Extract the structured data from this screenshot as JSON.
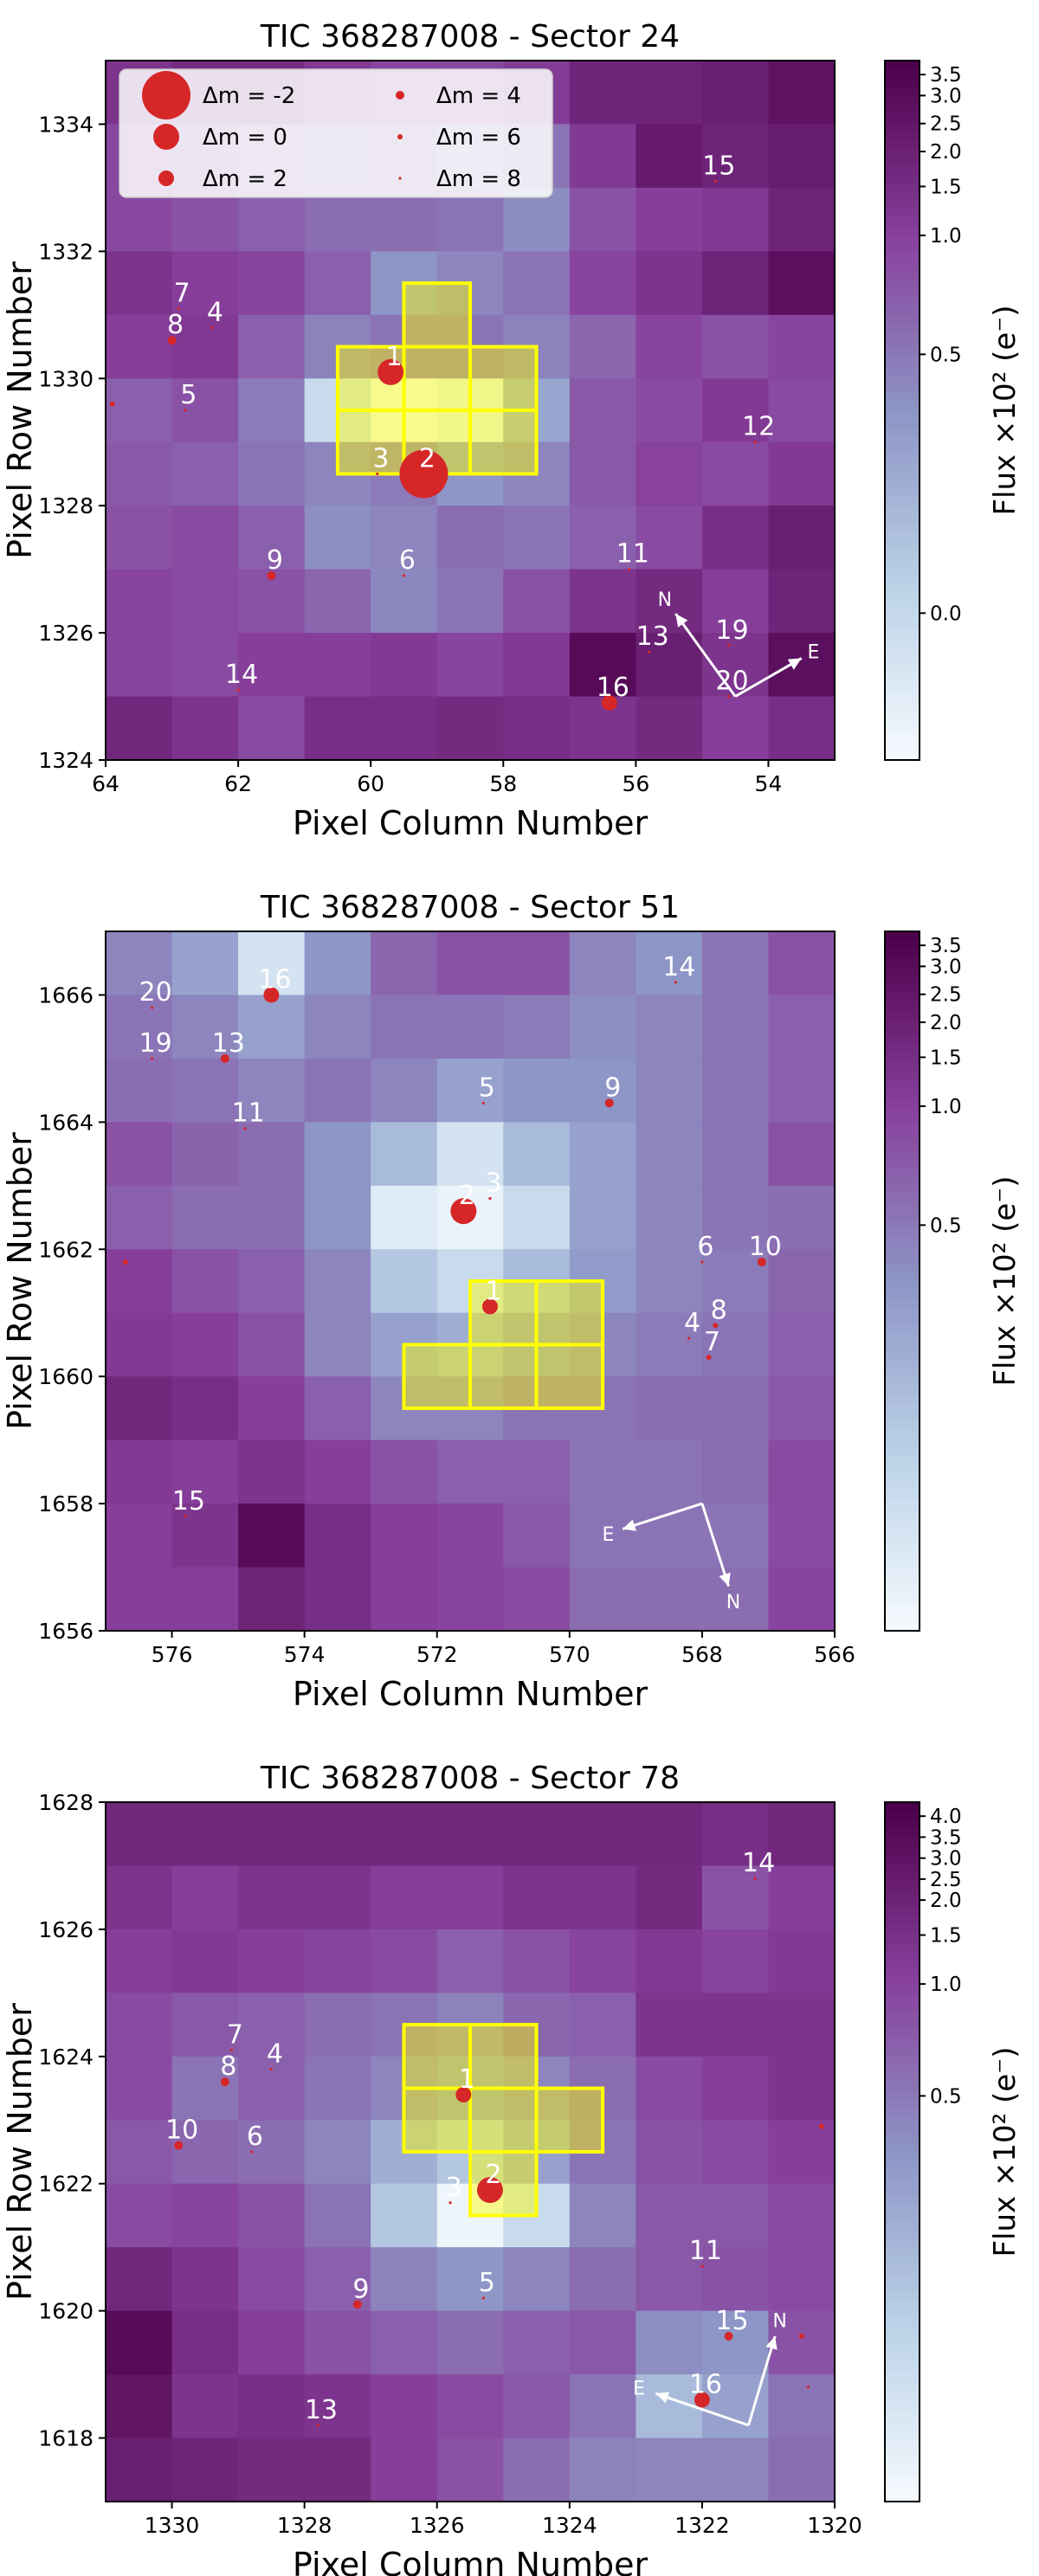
{
  "chart_data": [
    {
      "type": "heatmap",
      "title": "TIC 368287008 - Sector 24",
      "xlabel": "Pixel Column Number",
      "ylabel": "Pixel Row Number",
      "colorbar_label": "Flux ×10² (e⁻)",
      "xlim": [
        64,
        53
      ],
      "ylim": [
        1324,
        1335
      ],
      "xticks": [
        64,
        62,
        60,
        58,
        56,
        54
      ],
      "yticks": [
        1324,
        1326,
        1328,
        1330,
        1332,
        1334
      ],
      "colorbar_ticks": [
        "3.5",
        "3.0",
        "2.5",
        "2.0",
        "1.5",
        "1.0",
        "0.5",
        "0.0"
      ],
      "colorbar_tick_pos": [
        0.02,
        0.05,
        0.09,
        0.13,
        0.18,
        0.25,
        0.42,
        0.79
      ],
      "grid": [
        [
          0.8,
          0.84,
          0.83,
          0.78,
          0.74,
          0.73,
          0.77,
          0.86,
          0.86,
          0.88,
          0.93
        ],
        [
          0.73,
          0.7,
          0.64,
          0.6,
          0.64,
          0.54,
          0.6,
          0.78,
          0.9,
          0.86,
          0.89
        ],
        [
          0.73,
          0.7,
          0.66,
          0.62,
          0.62,
          0.6,
          0.53,
          0.7,
          0.76,
          0.78,
          0.86
        ],
        [
          0.8,
          0.76,
          0.74,
          0.66,
          0.5,
          0.55,
          0.6,
          0.74,
          0.8,
          0.86,
          0.94
        ],
        [
          0.76,
          0.78,
          0.66,
          0.56,
          0.6,
          0.6,
          0.56,
          0.64,
          0.74,
          0.7,
          0.74
        ],
        [
          0.66,
          0.7,
          0.58,
          0.2,
          0.02,
          0.08,
          0.44,
          0.68,
          0.72,
          0.78,
          0.72
        ],
        [
          0.68,
          0.66,
          0.6,
          0.55,
          0.58,
          0.5,
          0.55,
          0.68,
          0.75,
          0.72,
          0.78
        ],
        [
          0.7,
          0.72,
          0.66,
          0.52,
          0.55,
          0.62,
          0.6,
          0.66,
          0.72,
          0.82,
          0.88
        ],
        [
          0.74,
          0.72,
          0.7,
          0.64,
          0.54,
          0.6,
          0.7,
          0.8,
          0.84,
          0.76,
          0.86
        ],
        [
          0.74,
          0.72,
          0.76,
          0.76,
          0.78,
          0.74,
          0.78,
          0.96,
          0.88,
          0.8,
          0.94
        ],
        [
          0.85,
          0.8,
          0.72,
          0.82,
          0.82,
          0.84,
          0.82,
          0.8,
          0.84,
          0.76,
          0.82
        ]
      ],
      "aperture": [
        [
          59,
          1331
        ],
        [
          60,
          1330
        ],
        [
          59,
          1330
        ],
        [
          58,
          1330
        ],
        [
          60,
          1329
        ],
        [
          59,
          1329
        ],
        [
          58,
          1329
        ]
      ],
      "stars": [
        {
          "label": "1",
          "x": 59.7,
          "y": 1330.1,
          "size": "0"
        },
        {
          "label": "2",
          "x": 59.2,
          "y": 1328.5,
          "size": "-2"
        },
        {
          "label": "3",
          "x": 59.9,
          "y": 1328.5,
          "size": "8"
        },
        {
          "label": "4",
          "x": 62.4,
          "y": 1330.8,
          "size": "8"
        },
        {
          "label": "5",
          "x": 62.8,
          "y": 1329.5,
          "size": "8"
        },
        {
          "label": "6",
          "x": 59.5,
          "y": 1326.9,
          "size": "8"
        },
        {
          "label": "7",
          "x": 62.9,
          "y": 1331.1,
          "size": "8"
        },
        {
          "label": "8",
          "x": 63.0,
          "y": 1330.6,
          "size": "4"
        },
        {
          "label": "9",
          "x": 61.5,
          "y": 1326.9,
          "size": "4"
        },
        {
          "label": "11",
          "x": 56.1,
          "y": 1327.0,
          "size": "8"
        },
        {
          "label": "12",
          "x": 54.2,
          "y": 1329.0,
          "size": "8"
        },
        {
          "label": "13",
          "x": 55.8,
          "y": 1325.7,
          "size": "8"
        },
        {
          "label": "14",
          "x": 62.0,
          "y": 1325.1,
          "size": "8"
        },
        {
          "label": "15",
          "x": 54.8,
          "y": 1333.1,
          "size": "8"
        },
        {
          "label": "16",
          "x": 56.4,
          "y": 1324.9,
          "size": "2"
        },
        {
          "label": "19",
          "x": 54.6,
          "y": 1325.8,
          "size": "8"
        },
        {
          "label": "20",
          "x": 54.6,
          "y": 1325.0,
          "size": "8"
        },
        {
          "label": "",
          "x": 63.9,
          "y": 1329.6,
          "size": "6"
        }
      ],
      "compass": {
        "ox": 54.5,
        "oy": 1325.0,
        "n_dx": 0.9,
        "n_dy": 1.3,
        "e_dx": -1.0,
        "e_dy": 0.6,
        "n_label": "N",
        "e_label": "E"
      },
      "legend": {
        "entries": [
          {
            "label": "Δm = -2",
            "size": "-2"
          },
          {
            "label": "Δm = 4",
            "size": "4"
          },
          {
            "label": "Δm = 0",
            "size": "0"
          },
          {
            "label": "Δm = 6",
            "size": "6"
          },
          {
            "label": "Δm = 2",
            "size": "2"
          },
          {
            "label": "Δm = 8",
            "size": "8"
          }
        ],
        "placement": "upper-left"
      }
    },
    {
      "type": "heatmap",
      "title": "TIC 368287008 - Sector 51",
      "xlabel": "Pixel Column Number",
      "ylabel": "Pixel Row Number",
      "colorbar_label": "Flux ×10² (e⁻)",
      "xlim": [
        577,
        566
      ],
      "ylim": [
        1656,
        1667
      ],
      "xticks": [
        576,
        574,
        572,
        570,
        568,
        566
      ],
      "yticks": [
        1656,
        1658,
        1660,
        1662,
        1664,
        1666
      ],
      "colorbar_ticks": [
        "3.5",
        "3.0",
        "2.5",
        "2.0",
        "1.5",
        "1.0",
        "0.5"
      ],
      "colorbar_tick_pos": [
        0.02,
        0.05,
        0.09,
        0.13,
        0.18,
        0.25,
        0.42
      ],
      "grid": [
        [
          0.55,
          0.45,
          0.15,
          0.5,
          0.64,
          0.7,
          0.7,
          0.55,
          0.5,
          0.6,
          0.7
        ],
        [
          0.6,
          0.55,
          0.45,
          0.55,
          0.6,
          0.6,
          0.58,
          0.52,
          0.55,
          0.6,
          0.66
        ],
        [
          0.62,
          0.6,
          0.55,
          0.6,
          0.55,
          0.45,
          0.5,
          0.5,
          0.55,
          0.6,
          0.66
        ],
        [
          0.7,
          0.65,
          0.62,
          0.5,
          0.35,
          0.15,
          0.35,
          0.45,
          0.55,
          0.6,
          0.7
        ],
        [
          0.66,
          0.62,
          0.62,
          0.5,
          0.1,
          0.05,
          0.2,
          0.45,
          0.55,
          0.6,
          0.62
        ],
        [
          0.76,
          0.7,
          0.66,
          0.55,
          0.3,
          0.2,
          0.35,
          0.48,
          0.55,
          0.58,
          0.64
        ],
        [
          0.78,
          0.76,
          0.7,
          0.55,
          0.45,
          0.4,
          0.5,
          0.55,
          0.58,
          0.6,
          0.66
        ],
        [
          0.85,
          0.82,
          0.76,
          0.66,
          0.55,
          0.55,
          0.6,
          0.6,
          0.62,
          0.62,
          0.68
        ],
        [
          0.78,
          0.76,
          0.8,
          0.76,
          0.7,
          0.66,
          0.66,
          0.6,
          0.6,
          0.62,
          0.72
        ],
        [
          0.76,
          0.8,
          0.96,
          0.82,
          0.76,
          0.74,
          0.68,
          0.6,
          0.6,
          0.6,
          0.72
        ],
        [
          0.76,
          0.76,
          0.86,
          0.82,
          0.76,
          0.74,
          0.72,
          0.62,
          0.62,
          0.62,
          0.74
        ]
      ],
      "aperture": [
        [
          571,
          1661
        ],
        [
          570,
          1661
        ],
        [
          572,
          1660
        ],
        [
          571,
          1660
        ],
        [
          570,
          1660
        ]
      ],
      "stars": [
        {
          "label": "1",
          "x": 571.2,
          "y": 1661.1,
          "size": "2"
        },
        {
          "label": "2",
          "x": 571.6,
          "y": 1662.6,
          "size": "0"
        },
        {
          "label": "3",
          "x": 571.2,
          "y": 1662.8,
          "size": "8"
        },
        {
          "label": "4",
          "x": 568.2,
          "y": 1660.6,
          "size": "8"
        },
        {
          "label": "5",
          "x": 571.3,
          "y": 1664.3,
          "size": "8"
        },
        {
          "label": "6",
          "x": 568.0,
          "y": 1661.8,
          "size": "8"
        },
        {
          "label": "7",
          "x": 567.9,
          "y": 1660.3,
          "size": "6"
        },
        {
          "label": "8",
          "x": 567.8,
          "y": 1660.8,
          "size": "6"
        },
        {
          "label": "9",
          "x": 569.4,
          "y": 1664.3,
          "size": "4"
        },
        {
          "label": "10",
          "x": 567.1,
          "y": 1661.8,
          "size": "4"
        },
        {
          "label": "11",
          "x": 574.9,
          "y": 1663.9,
          "size": "8"
        },
        {
          "label": "13",
          "x": 575.2,
          "y": 1665.0,
          "size": "4"
        },
        {
          "label": "14",
          "x": 568.4,
          "y": 1666.2,
          "size": "8"
        },
        {
          "label": "15",
          "x": 575.8,
          "y": 1657.8,
          "size": "8"
        },
        {
          "label": "16",
          "x": 574.5,
          "y": 1666.0,
          "size": "2"
        },
        {
          "label": "19",
          "x": 576.3,
          "y": 1665.0,
          "size": "8"
        },
        {
          "label": "20",
          "x": 576.3,
          "y": 1665.8,
          "size": "8"
        },
        {
          "label": "",
          "x": 576.7,
          "y": 1661.8,
          "size": "6"
        }
      ],
      "compass": {
        "ox": 568.0,
        "oy": 1658.0,
        "n_dx": -0.4,
        "n_dy": -1.3,
        "e_dx": 1.2,
        "e_dy": -0.4,
        "n_label": "N",
        "e_label": "E"
      }
    },
    {
      "type": "heatmap",
      "title": "TIC 368287008 - Sector 78",
      "xlabel": "Pixel Column Number",
      "ylabel": "Pixel Row Number",
      "colorbar_label": "Flux ×10² (e⁻)",
      "xlim": [
        1331,
        1320
      ],
      "ylim": [
        1617,
        1628
      ],
      "xticks": [
        1330,
        1328,
        1326,
        1324,
        1322,
        1320
      ],
      "yticks": [
        1618,
        1620,
        1622,
        1624,
        1626,
        1628
      ],
      "colorbar_ticks": [
        "4.0",
        "3.5",
        "3.0",
        "2.5",
        "2.0",
        "1.5",
        "1.0",
        "0.5"
      ],
      "colorbar_tick_pos": [
        0.02,
        0.05,
        0.08,
        0.11,
        0.14,
        0.19,
        0.26,
        0.42
      ],
      "grid": [
        [
          0.85,
          0.85,
          0.85,
          0.85,
          0.85,
          0.85,
          0.85,
          0.85,
          0.85,
          0.82,
          0.85
        ],
        [
          0.8,
          0.76,
          0.8,
          0.8,
          0.76,
          0.76,
          0.8,
          0.8,
          0.84,
          0.7,
          0.76
        ],
        [
          0.76,
          0.78,
          0.76,
          0.74,
          0.72,
          0.66,
          0.7,
          0.74,
          0.78,
          0.74,
          0.78
        ],
        [
          0.72,
          0.68,
          0.66,
          0.62,
          0.6,
          0.56,
          0.64,
          0.66,
          0.8,
          0.8,
          0.8
        ],
        [
          0.72,
          0.6,
          0.66,
          0.6,
          0.55,
          0.5,
          0.55,
          0.62,
          0.72,
          0.76,
          0.8
        ],
        [
          0.68,
          0.64,
          0.62,
          0.55,
          0.4,
          0.3,
          0.45,
          0.6,
          0.7,
          0.72,
          0.76
        ],
        [
          0.72,
          0.74,
          0.7,
          0.6,
          0.3,
          0.04,
          0.2,
          0.55,
          0.68,
          0.68,
          0.72
        ],
        [
          0.85,
          0.8,
          0.72,
          0.66,
          0.56,
          0.5,
          0.55,
          0.62,
          0.68,
          0.7,
          0.72
        ],
        [
          0.96,
          0.82,
          0.76,
          0.7,
          0.66,
          0.62,
          0.66,
          0.68,
          0.52,
          0.5,
          0.7
        ],
        [
          0.92,
          0.8,
          0.82,
          0.8,
          0.76,
          0.72,
          0.68,
          0.6,
          0.35,
          0.45,
          0.6
        ],
        [
          0.88,
          0.86,
          0.84,
          0.84,
          0.76,
          0.7,
          0.62,
          0.56,
          0.55,
          0.55,
          0.62
        ]
      ],
      "aperture": [
        [
          1326,
          1624
        ],
        [
          1325,
          1624
        ],
        [
          1326,
          1623
        ],
        [
          1325,
          1623
        ],
        [
          1324,
          1623
        ],
        [
          1325,
          1622
        ]
      ],
      "stars": [
        {
          "label": "1",
          "x": 1325.6,
          "y": 1623.4,
          "size": "2"
        },
        {
          "label": "2",
          "x": 1325.2,
          "y": 1621.9,
          "size": "0"
        },
        {
          "label": "3",
          "x": 1325.8,
          "y": 1621.7,
          "size": "8"
        },
        {
          "label": "4",
          "x": 1328.5,
          "y": 1623.8,
          "size": "8"
        },
        {
          "label": "5",
          "x": 1325.3,
          "y": 1620.2,
          "size": "8"
        },
        {
          "label": "6",
          "x": 1328.8,
          "y": 1622.5,
          "size": "8"
        },
        {
          "label": "7",
          "x": 1329.1,
          "y": 1624.1,
          "size": "8"
        },
        {
          "label": "8",
          "x": 1329.2,
          "y": 1623.6,
          "size": "4"
        },
        {
          "label": "9",
          "x": 1327.2,
          "y": 1620.1,
          "size": "4"
        },
        {
          "label": "10",
          "x": 1329.9,
          "y": 1622.6,
          "size": "4"
        },
        {
          "label": "11",
          "x": 1322.0,
          "y": 1620.7,
          "size": "8"
        },
        {
          "label": "14",
          "x": 1321.2,
          "y": 1626.8,
          "size": "8"
        },
        {
          "label": "15",
          "x": 1321.6,
          "y": 1619.6,
          "size": "4"
        },
        {
          "label": "16",
          "x": 1322.0,
          "y": 1618.6,
          "size": "2"
        },
        {
          "label": "",
          "x": 1320.2,
          "y": 1622.9,
          "size": "6"
        },
        {
          "label": "",
          "x": 1320.5,
          "y": 1619.6,
          "size": "6"
        },
        {
          "label": "",
          "x": 1320.4,
          "y": 1618.8,
          "size": "8"
        },
        {
          "label": "13",
          "x": 1327.8,
          "y": 1618.2,
          "size": "8"
        }
      ],
      "compass": {
        "ox": 1321.3,
        "oy": 1618.2,
        "n_dx": -0.4,
        "n_dy": 1.4,
        "e_dx": 1.4,
        "e_dy": 0.5,
        "n_label": "N",
        "e_label": "E"
      }
    }
  ],
  "colors": {
    "aperture": "#ffff00",
    "star": "#d62728",
    "colormap": [
      "#f7fbff",
      "#bcd3e8",
      "#8d96c6",
      "#88419d",
      "#4d004b"
    ]
  }
}
